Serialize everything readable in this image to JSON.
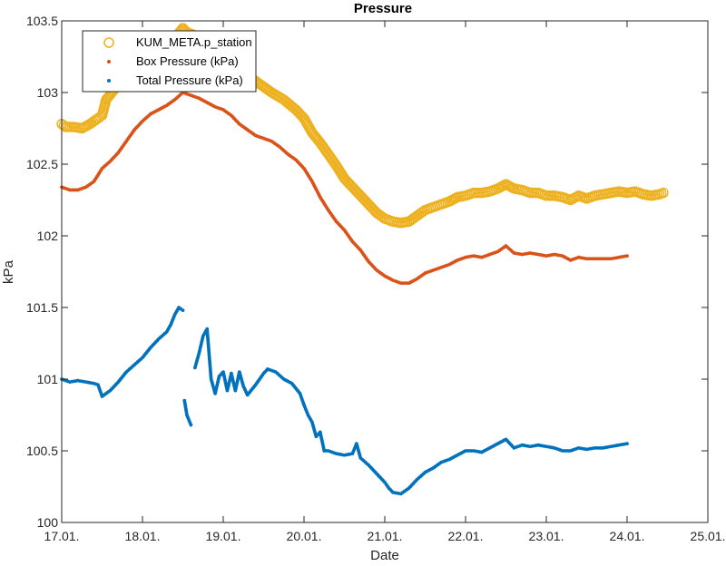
{
  "chart_data": {
    "type": "scatter",
    "title": "Pressure",
    "xlabel": "Date",
    "ylabel": "kPa",
    "xlim": [
      17,
      25
    ],
    "ylim": [
      100,
      103.5
    ],
    "x_ticks": [
      17,
      18,
      19,
      20,
      21,
      22,
      23,
      24,
      25
    ],
    "x_tick_labels": [
      "17.01.",
      "18.01.",
      "19.01.",
      "20.01.",
      "21.01.",
      "22.01.",
      "23.01.",
      "24.01.",
      "25.01."
    ],
    "y_ticks": [
      100,
      100.5,
      101,
      101.5,
      102,
      102.5,
      103,
      103.5
    ],
    "y_tick_labels": [
      "100",
      "100.5",
      "101",
      "101.5",
      "102",
      "102.5",
      "103",
      "103.5"
    ],
    "legend_position": "top-left",
    "series": [
      {
        "name": "KUM_META.p_station",
        "marker": "circle-open",
        "color": "#EDB120",
        "points": [
          [
            17.0,
            102.78
          ],
          [
            17.05,
            102.76
          ],
          [
            17.15,
            102.76
          ],
          [
            17.25,
            102.75
          ],
          [
            17.35,
            102.78
          ],
          [
            17.45,
            102.82
          ],
          [
            17.5,
            102.84
          ],
          [
            17.55,
            102.95
          ],
          [
            17.65,
            103.02
          ],
          [
            17.75,
            103.1
          ],
          [
            17.85,
            103.2
          ],
          [
            18.0,
            103.28
          ],
          [
            18.1,
            103.3
          ],
          [
            18.2,
            103.36
          ],
          [
            18.3,
            103.36
          ],
          [
            18.4,
            103.38
          ],
          [
            18.5,
            103.45
          ],
          [
            18.55,
            103.42
          ],
          [
            18.65,
            103.4
          ],
          [
            18.75,
            103.38
          ],
          [
            18.85,
            103.33
          ],
          [
            19.0,
            103.3
          ],
          [
            19.1,
            103.25
          ],
          [
            19.2,
            103.18
          ],
          [
            19.3,
            103.12
          ],
          [
            19.45,
            103.06
          ],
          [
            19.6,
            103.0
          ],
          [
            19.75,
            102.95
          ],
          [
            19.9,
            102.88
          ],
          [
            20.0,
            102.82
          ],
          [
            20.1,
            102.72
          ],
          [
            20.2,
            102.65
          ],
          [
            20.3,
            102.57
          ],
          [
            20.4,
            102.49
          ],
          [
            20.5,
            102.4
          ],
          [
            20.6,
            102.34
          ],
          [
            20.7,
            102.28
          ],
          [
            20.8,
            102.22
          ],
          [
            20.9,
            102.16
          ],
          [
            21.0,
            102.12
          ],
          [
            21.1,
            102.1
          ],
          [
            21.2,
            102.09
          ],
          [
            21.3,
            102.1
          ],
          [
            21.4,
            102.14
          ],
          [
            21.5,
            102.18
          ],
          [
            21.6,
            102.2
          ],
          [
            21.7,
            102.22
          ],
          [
            21.8,
            102.24
          ],
          [
            21.9,
            102.27
          ],
          [
            22.0,
            102.28
          ],
          [
            22.1,
            102.3
          ],
          [
            22.2,
            102.3
          ],
          [
            22.3,
            102.31
          ],
          [
            22.4,
            102.33
          ],
          [
            22.5,
            102.36
          ],
          [
            22.6,
            102.33
          ],
          [
            22.7,
            102.32
          ],
          [
            22.8,
            102.3
          ],
          [
            22.9,
            102.3
          ],
          [
            23.0,
            102.28
          ],
          [
            23.1,
            102.28
          ],
          [
            23.2,
            102.27
          ],
          [
            23.3,
            102.25
          ],
          [
            23.4,
            102.28
          ],
          [
            23.5,
            102.26
          ],
          [
            23.6,
            102.28
          ],
          [
            23.7,
            102.29
          ],
          [
            23.8,
            102.3
          ],
          [
            23.9,
            102.31
          ],
          [
            24.0,
            102.3
          ],
          [
            24.1,
            102.31
          ],
          [
            24.2,
            102.29
          ],
          [
            24.3,
            102.28
          ],
          [
            24.4,
            102.29
          ],
          [
            24.45,
            102.3
          ]
        ]
      },
      {
        "name": "Box Pressure (kPa)",
        "marker": "dot",
        "color": "#D95319",
        "points": [
          [
            17.0,
            102.34
          ],
          [
            17.1,
            102.32
          ],
          [
            17.2,
            102.32
          ],
          [
            17.3,
            102.34
          ],
          [
            17.4,
            102.38
          ],
          [
            17.5,
            102.47
          ],
          [
            17.6,
            102.52
          ],
          [
            17.7,
            102.58
          ],
          [
            17.8,
            102.66
          ],
          [
            17.9,
            102.74
          ],
          [
            18.0,
            102.8
          ],
          [
            18.1,
            102.85
          ],
          [
            18.2,
            102.88
          ],
          [
            18.3,
            102.91
          ],
          [
            18.4,
            102.95
          ],
          [
            18.5,
            103.0
          ],
          [
            18.6,
            102.98
          ],
          [
            18.7,
            102.96
          ],
          [
            18.8,
            102.93
          ],
          [
            18.9,
            102.9
          ],
          [
            19.0,
            102.88
          ],
          [
            19.1,
            102.84
          ],
          [
            19.2,
            102.78
          ],
          [
            19.3,
            102.74
          ],
          [
            19.4,
            102.7
          ],
          [
            19.5,
            102.68
          ],
          [
            19.6,
            102.66
          ],
          [
            19.7,
            102.62
          ],
          [
            19.8,
            102.57
          ],
          [
            19.9,
            102.53
          ],
          [
            20.0,
            102.47
          ],
          [
            20.1,
            102.38
          ],
          [
            20.2,
            102.27
          ],
          [
            20.3,
            102.18
          ],
          [
            20.4,
            102.1
          ],
          [
            20.5,
            102.04
          ],
          [
            20.6,
            101.96
          ],
          [
            20.7,
            101.9
          ],
          [
            20.8,
            101.82
          ],
          [
            20.9,
            101.76
          ],
          [
            21.0,
            101.72
          ],
          [
            21.1,
            101.69
          ],
          [
            21.2,
            101.67
          ],
          [
            21.3,
            101.67
          ],
          [
            21.4,
            101.7
          ],
          [
            21.5,
            101.74
          ],
          [
            21.6,
            101.76
          ],
          [
            21.7,
            101.78
          ],
          [
            21.8,
            101.8
          ],
          [
            21.9,
            101.83
          ],
          [
            22.0,
            101.85
          ],
          [
            22.1,
            101.86
          ],
          [
            22.2,
            101.85
          ],
          [
            22.3,
            101.87
          ],
          [
            22.4,
            101.89
          ],
          [
            22.5,
            101.93
          ],
          [
            22.6,
            101.88
          ],
          [
            22.7,
            101.87
          ],
          [
            22.8,
            101.88
          ],
          [
            22.9,
            101.87
          ],
          [
            23.0,
            101.86
          ],
          [
            23.1,
            101.87
          ],
          [
            23.2,
            101.86
          ],
          [
            23.3,
            101.83
          ],
          [
            23.4,
            101.85
          ],
          [
            23.5,
            101.84
          ],
          [
            23.6,
            101.84
          ],
          [
            23.7,
            101.84
          ],
          [
            23.8,
            101.84
          ],
          [
            23.9,
            101.85
          ],
          [
            24.0,
            101.86
          ]
        ]
      },
      {
        "name": "Total Pressure (kPa)",
        "marker": "dot",
        "color": "#0072BD",
        "points": [
          [
            17.0,
            101.0
          ],
          [
            17.1,
            100.98
          ],
          [
            17.2,
            100.99
          ],
          [
            17.3,
            100.98
          ],
          [
            17.4,
            100.97
          ],
          [
            17.45,
            100.96
          ],
          [
            17.5,
            100.88
          ],
          [
            17.6,
            100.92
          ],
          [
            17.7,
            100.98
          ],
          [
            17.8,
            101.05
          ],
          [
            17.9,
            101.1
          ],
          [
            18.0,
            101.15
          ],
          [
            18.1,
            101.22
          ],
          [
            18.2,
            101.28
          ],
          [
            18.3,
            101.33
          ],
          [
            18.35,
            101.38
          ],
          [
            18.4,
            101.45
          ],
          [
            18.45,
            101.5
          ],
          [
            18.5,
            101.48
          ],
          [
            18.52,
            100.85
          ],
          [
            18.55,
            100.75
          ],
          [
            18.6,
            100.68
          ],
          [
            18.65,
            101.08
          ],
          [
            18.7,
            101.18
          ],
          [
            18.75,
            101.3
          ],
          [
            18.8,
            101.35
          ],
          [
            18.85,
            101.0
          ],
          [
            18.9,
            100.9
          ],
          [
            18.95,
            101.02
          ],
          [
            19.0,
            101.05
          ],
          [
            19.05,
            100.92
          ],
          [
            19.1,
            101.04
          ],
          [
            19.15,
            100.92
          ],
          [
            19.2,
            101.05
          ],
          [
            19.25,
            100.95
          ],
          [
            19.3,
            100.89
          ],
          [
            19.4,
            100.96
          ],
          [
            19.5,
            101.04
          ],
          [
            19.55,
            101.07
          ],
          [
            19.65,
            101.05
          ],
          [
            19.75,
            101.0
          ],
          [
            19.85,
            100.97
          ],
          [
            19.95,
            100.9
          ],
          [
            20.0,
            100.82
          ],
          [
            20.05,
            100.75
          ],
          [
            20.1,
            100.7
          ],
          [
            20.15,
            100.6
          ],
          [
            20.2,
            100.63
          ],
          [
            20.25,
            100.5
          ],
          [
            20.3,
            100.5
          ],
          [
            20.4,
            100.48
          ],
          [
            20.5,
            100.47
          ],
          [
            20.6,
            100.48
          ],
          [
            20.65,
            100.55
          ],
          [
            20.7,
            100.45
          ],
          [
            20.8,
            100.4
          ],
          [
            20.9,
            100.34
          ],
          [
            21.0,
            100.28
          ],
          [
            21.05,
            100.24
          ],
          [
            21.1,
            100.21
          ],
          [
            21.2,
            100.2
          ],
          [
            21.3,
            100.24
          ],
          [
            21.4,
            100.3
          ],
          [
            21.5,
            100.35
          ],
          [
            21.6,
            100.38
          ],
          [
            21.7,
            100.42
          ],
          [
            21.8,
            100.44
          ],
          [
            21.9,
            100.47
          ],
          [
            22.0,
            100.5
          ],
          [
            22.1,
            100.5
          ],
          [
            22.2,
            100.49
          ],
          [
            22.3,
            100.52
          ],
          [
            22.4,
            100.55
          ],
          [
            22.5,
            100.58
          ],
          [
            22.6,
            100.52
          ],
          [
            22.7,
            100.54
          ],
          [
            22.8,
            100.53
          ],
          [
            22.9,
            100.54
          ],
          [
            23.0,
            100.53
          ],
          [
            23.1,
            100.52
          ],
          [
            23.2,
            100.5
          ],
          [
            23.3,
            100.5
          ],
          [
            23.4,
            100.52
          ],
          [
            23.5,
            100.51
          ],
          [
            23.6,
            100.52
          ],
          [
            23.7,
            100.52
          ],
          [
            23.8,
            100.53
          ],
          [
            23.9,
            100.54
          ],
          [
            24.0,
            100.55
          ]
        ]
      }
    ]
  }
}
